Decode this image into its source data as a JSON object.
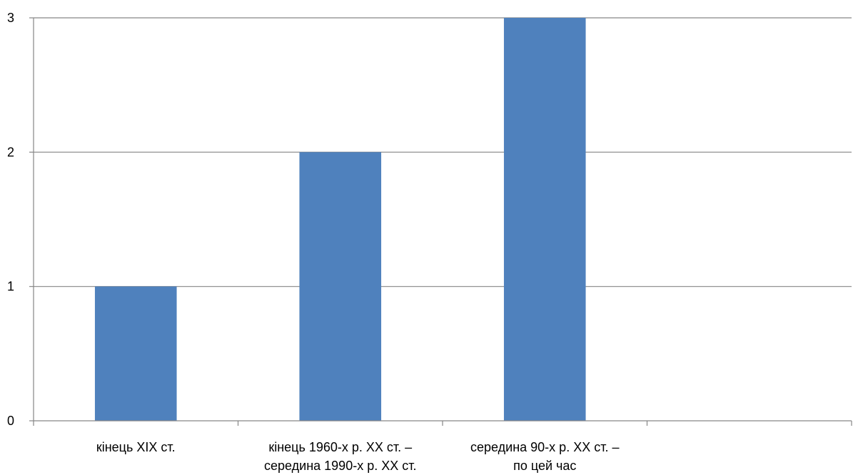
{
  "chart_data": {
    "type": "bar",
    "categories": [
      [
        "кінець XIX ст."
      ],
      [
        "кінець 1960-х р. XX ст. –",
        "середина 1990-х р. XX ст."
      ],
      [
        "середина 90-х р. XX ст. –",
        "по цей час"
      ],
      [
        ""
      ]
    ],
    "values": [
      1,
      2,
      3,
      null
    ],
    "title": "",
    "xlabel": "",
    "ylabel": "",
    "ylim": [
      0,
      3
    ],
    "yticks": [
      0,
      1,
      2,
      3
    ],
    "grid": true,
    "legend": "none",
    "colors": {
      "bar": "#4f81bd",
      "grid": "#868686",
      "axis": "#868686"
    }
  }
}
